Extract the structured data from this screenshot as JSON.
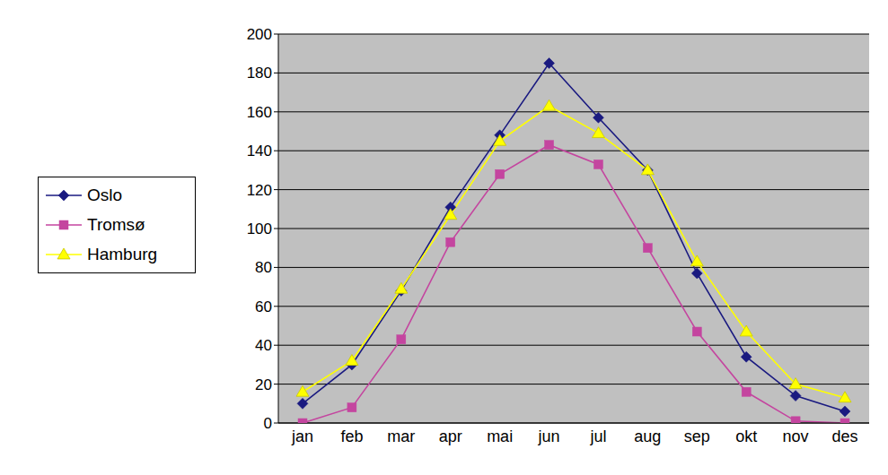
{
  "chart_data": {
    "type": "line",
    "categories": [
      "jan",
      "feb",
      "mar",
      "apr",
      "mai",
      "jun",
      "jul",
      "aug",
      "sep",
      "okt",
      "nov",
      "des"
    ],
    "series": [
      {
        "name": "Oslo",
        "color": "#1a1a80",
        "marker": "diamond",
        "values": [
          10,
          30,
          68,
          111,
          148,
          185,
          157,
          130,
          77,
          34,
          14,
          6
        ]
      },
      {
        "name": "Tromsø",
        "color": "#c4459f",
        "marker": "square",
        "values": [
          0,
          8,
          43,
          93,
          128,
          143,
          133,
          90,
          47,
          16,
          1,
          0
        ]
      },
      {
        "name": "Hamburg",
        "color": "#ffff00",
        "marker": "triangle",
        "values": [
          16,
          32,
          69,
          107,
          145,
          163,
          149,
          130,
          83,
          47,
          20,
          13
        ]
      }
    ],
    "ylim": [
      0,
      200
    ],
    "yticks": [
      0,
      20,
      40,
      60,
      80,
      100,
      120,
      140,
      160,
      180,
      200
    ],
    "grid": true,
    "legend": "left"
  }
}
